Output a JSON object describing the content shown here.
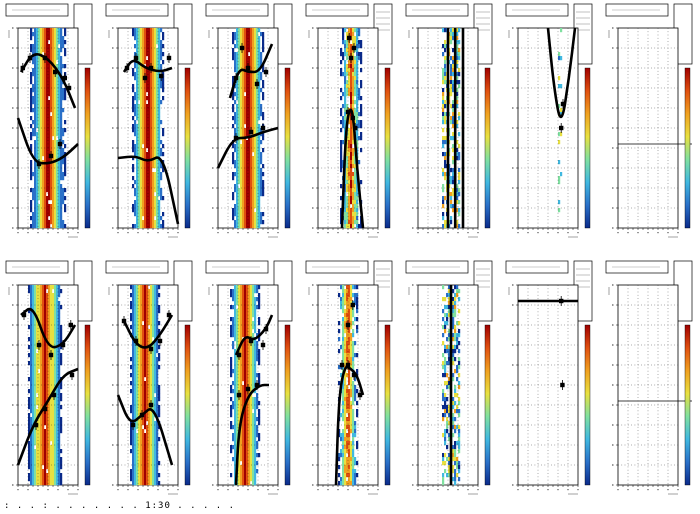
{
  "footer": {
    "text": ": . . : . . . . . . .  1:30  . . . . ."
  },
  "colors": {
    "heat": [
      "#0a2a8a",
      "#2a70c8",
      "#40b8e0",
      "#80e0a0",
      "#e8e040",
      "#f0a020",
      "#e05010",
      "#a00000"
    ]
  },
  "chart_data": [
    {
      "type": "heatmap",
      "row": 0,
      "col": 0,
      "band_center": 0.5,
      "band_width": 0.55,
      "noise": "low",
      "curves": [
        {
          "points": [
            [
              0,
              0.55
            ],
            [
              0.25,
              0.33
            ],
            [
              0.5,
              0.32
            ],
            [
              0.75,
              0.35
            ],
            [
              1,
              0.42
            ]
          ]
        },
        {
          "points": [
            [
              0.05,
              0.78
            ],
            [
              0.25,
              0.88
            ],
            [
              0.5,
              0.85
            ],
            [
              0.75,
              0.75
            ],
            [
              0.95,
              0.6
            ]
          ]
        }
      ],
      "markers": [
        [
          0.35,
          0.32
        ],
        [
          0.55,
          0.36
        ],
        [
          0.7,
          0.42
        ],
        [
          0.08,
          0.8
        ],
        [
          0.2,
          0.85
        ],
        [
          0.45,
          0.85
        ],
        [
          0.62,
          0.78
        ],
        [
          0.78,
          0.75
        ],
        [
          0.85,
          0.7
        ]
      ]
    },
    {
      "type": "heatmap",
      "row": 0,
      "col": 1,
      "band_center": 0.5,
      "band_width": 0.5,
      "noise": "low",
      "curves": [
        {
          "points": [
            [
              0,
              0.35
            ],
            [
              0.3,
              0.36
            ],
            [
              0.5,
              0.33
            ],
            [
              0.75,
              0.37
            ],
            [
              1,
              0.02
            ]
          ]
        },
        {
          "points": [
            [
              0.1,
              0.78
            ],
            [
              0.25,
              0.85
            ],
            [
              0.45,
              0.8
            ],
            [
              0.7,
              0.78
            ],
            [
              0.9,
              0.8
            ]
          ]
        }
      ],
      "markers": [
        [
          0.15,
          0.8
        ],
        [
          0.3,
          0.85
        ],
        [
          0.45,
          0.75
        ],
        [
          0.55,
          0.8
        ],
        [
          0.72,
          0.76
        ],
        [
          0.85,
          0.85
        ]
      ]
    },
    {
      "type": "heatmap",
      "row": 0,
      "col": 2,
      "band_center": 0.5,
      "band_width": 0.5,
      "noise": "med",
      "curves": [
        {
          "points": [
            [
              0,
              0.3
            ],
            [
              0.25,
              0.45
            ],
            [
              0.5,
              0.45
            ],
            [
              0.75,
              0.48
            ],
            [
              1,
              0.5
            ]
          ]
        },
        {
          "points": [
            [
              0.2,
              0.65
            ],
            [
              0.35,
              0.8
            ],
            [
              0.5,
              0.78
            ],
            [
              0.7,
              0.78
            ],
            [
              0.9,
              0.92
            ]
          ]
        }
      ],
      "markers": [
        [
          0.3,
          0.45
        ],
        [
          0.55,
          0.48
        ],
        [
          0.75,
          0.5
        ],
        [
          0.3,
          0.75
        ],
        [
          0.5,
          0.8
        ],
        [
          0.65,
          0.72
        ],
        [
          0.8,
          0.78
        ],
        [
          0.4,
          0.9
        ]
      ]
    },
    {
      "type": "heatmap",
      "row": 0,
      "col": 3,
      "band_center": 0.55,
      "band_width": 0.3,
      "noise": "high",
      "curves": [
        {
          "points": [
            [
              0.4,
              0.0
            ],
            [
              0.45,
              0.4
            ],
            [
              0.5,
              0.58
            ],
            [
              0.58,
              0.6
            ],
            [
              0.65,
              0.3
            ],
            [
              0.75,
              0.0
            ]
          ]
        }
      ],
      "markers": [
        [
          0.5,
          0.58
        ],
        [
          0.58,
          0.55
        ],
        [
          0.62,
          0.5
        ],
        [
          0.55,
          0.85
        ],
        [
          0.6,
          0.9
        ],
        [
          0.52,
          0.95
        ]
      ]
    },
    {
      "type": "heatmap",
      "row": 0,
      "col": 4,
      "band_center": 0.55,
      "band_width": 0.25,
      "noise": "very-high",
      "curves": [
        {
          "points": [
            [
              0.5,
              0.0
            ],
            [
              0.5,
              1.0
            ]
          ]
        },
        {
          "points": [
            [
              0.62,
              0.0
            ],
            [
              0.62,
              1.0
            ]
          ]
        },
        {
          "points": [
            [
              0.75,
              0.0
            ],
            [
              0.75,
              1.0
            ]
          ]
        }
      ],
      "markers": []
    },
    {
      "type": "heatmap",
      "row": 0,
      "col": 5,
      "band_center": 0.7,
      "band_width": 0.05,
      "noise": "sparse",
      "curves": [
        {
          "points": [
            [
              0.5,
              1.0
            ],
            [
              0.6,
              0.7
            ],
            [
              0.72,
              0.5
            ],
            [
              0.85,
              0.75
            ],
            [
              0.95,
              1.0
            ]
          ]
        }
      ],
      "markers": [
        [
          0.72,
          0.5
        ],
        [
          0.75,
          0.62
        ]
      ]
    },
    {
      "type": "heatmap",
      "row": 0,
      "col": 6,
      "band_center": 0.5,
      "band_width": 0.0,
      "noise": "empty",
      "hline": 0.42,
      "curves": [],
      "markers": []
    },
    {
      "type": "heatmap",
      "row": 1,
      "col": 0,
      "band_center": 0.45,
      "band_width": 0.55,
      "noise": "low",
      "curves": [
        {
          "points": [
            [
              0,
              0.1
            ],
            [
              0.25,
              0.3
            ],
            [
              0.5,
              0.42
            ],
            [
              0.75,
              0.55
            ],
            [
              1,
              0.58
            ]
          ]
        },
        {
          "points": [
            [
              0.05,
              0.85
            ],
            [
              0.25,
              0.9
            ],
            [
              0.5,
              0.68
            ],
            [
              0.75,
              0.7
            ],
            [
              0.95,
              0.8
            ]
          ]
        }
      ],
      "markers": [
        [
          0.3,
          0.3
        ],
        [
          0.45,
          0.38
        ],
        [
          0.6,
          0.45
        ],
        [
          0.9,
          0.55
        ],
        [
          0.1,
          0.85
        ],
        [
          0.35,
          0.7
        ],
        [
          0.55,
          0.65
        ],
        [
          0.75,
          0.7
        ],
        [
          0.88,
          0.8
        ]
      ]
    },
    {
      "type": "heatmap",
      "row": 1,
      "col": 1,
      "band_center": 0.45,
      "band_width": 0.5,
      "noise": "low",
      "curves": [
        {
          "points": [
            [
              0,
              0.45
            ],
            [
              0.2,
              0.3
            ],
            [
              0.4,
              0.35
            ],
            [
              0.6,
              0.4
            ],
            [
              0.9,
              0.1
            ]
          ]
        },
        {
          "points": [
            [
              0.1,
              0.82
            ],
            [
              0.3,
              0.7
            ],
            [
              0.5,
              0.68
            ],
            [
              0.7,
              0.75
            ],
            [
              0.9,
              0.85
            ]
          ]
        }
      ],
      "markers": [
        [
          0.25,
          0.3
        ],
        [
          0.4,
          0.35
        ],
        [
          0.55,
          0.4
        ],
        [
          0.1,
          0.82
        ],
        [
          0.3,
          0.72
        ],
        [
          0.55,
          0.68
        ],
        [
          0.7,
          0.72
        ],
        [
          0.85,
          0.85
        ]
      ]
    },
    {
      "type": "heatmap",
      "row": 1,
      "col": 2,
      "band_center": 0.45,
      "band_width": 0.45,
      "noise": "med",
      "curves": [
        {
          "points": [
            [
              0.3,
              0.0
            ],
            [
              0.35,
              0.3
            ],
            [
              0.5,
              0.45
            ],
            [
              0.7,
              0.5
            ],
            [
              0.85,
              0.5
            ]
          ]
        },
        {
          "points": [
            [
              0.3,
              0.65
            ],
            [
              0.45,
              0.75
            ],
            [
              0.6,
              0.72
            ],
            [
              0.8,
              0.78
            ],
            [
              0.9,
              0.85
            ]
          ]
        }
      ],
      "markers": [
        [
          0.35,
          0.45
        ],
        [
          0.5,
          0.48
        ],
        [
          0.65,
          0.5
        ],
        [
          0.35,
          0.65
        ],
        [
          0.55,
          0.72
        ],
        [
          0.75,
          0.7
        ],
        [
          0.8,
          0.78
        ]
      ]
    },
    {
      "type": "heatmap",
      "row": 1,
      "col": 3,
      "band_center": 0.5,
      "band_width": 0.3,
      "noise": "high",
      "curves": [
        {
          "points": [
            [
              0.3,
              0.0
            ],
            [
              0.35,
              0.45
            ],
            [
              0.45,
              0.6
            ],
            [
              0.55,
              0.58
            ],
            [
              0.65,
              0.55
            ],
            [
              0.75,
              0.45
            ]
          ]
        }
      ],
      "markers": [
        [
          0.4,
          0.6
        ],
        [
          0.5,
          0.6
        ],
        [
          0.6,
          0.55
        ],
        [
          0.7,
          0.45
        ],
        [
          0.5,
          0.8
        ],
        [
          0.58,
          0.9
        ]
      ]
    },
    {
      "type": "heatmap",
      "row": 1,
      "col": 4,
      "band_center": 0.55,
      "band_width": 0.22,
      "noise": "very-high",
      "curves": [
        {
          "points": [
            [
              0.55,
              0.0
            ],
            [
              0.55,
              1.0
            ]
          ]
        }
      ],
      "markers": []
    },
    {
      "type": "heatmap",
      "row": 1,
      "col": 5,
      "band_center": 0.7,
      "band_width": 0.03,
      "noise": "sparse",
      "curves": [
        {
          "points": [
            [
              0.0,
              0.92
            ],
            [
              1.0,
              0.92
            ]
          ]
        }
      ],
      "markers": [
        [
          0.72,
          0.92
        ],
        [
          0.74,
          0.5
        ]
      ]
    },
    {
      "type": "heatmap",
      "row": 1,
      "col": 6,
      "band_center": 0.5,
      "band_width": 0.0,
      "noise": "empty",
      "hline": 0.42,
      "curves": [],
      "markers": []
    }
  ]
}
